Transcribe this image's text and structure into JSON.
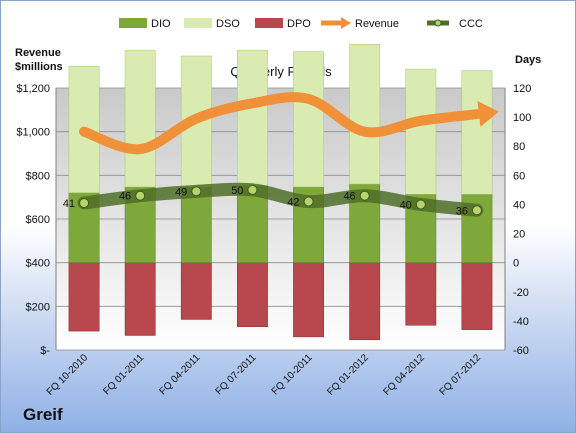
{
  "company": "Greif",
  "chart_data": {
    "type": "bar",
    "title": "Quarterly Periods",
    "categories": [
      "FQ 10-2010",
      "FQ 01-2011",
      "FQ 04-2011",
      "FQ 07-2011",
      "FQ 10-2011",
      "FQ 01-2012",
      "FQ 04-2012",
      "FQ 07-2012"
    ],
    "left_axis": {
      "label": "Revenue\n$millions",
      "ylim": [
        0,
        1200
      ],
      "ticks": [
        0,
        200,
        400,
        600,
        800,
        1000,
        1200
      ],
      "tick_labels": [
        "$-",
        "$200",
        "$400",
        "$600",
        "$800",
        "$1,000",
        "$1,200"
      ]
    },
    "right_axis": {
      "label": "Days",
      "ylim": [
        -60,
        120
      ],
      "ticks": [
        -60,
        -40,
        -20,
        0,
        20,
        40,
        60,
        80,
        100,
        120
      ],
      "tick_labels": [
        "-60",
        "-40",
        "-20",
        "0",
        "20",
        "40",
        "60",
        "80",
        "100",
        "120"
      ]
    },
    "series": [
      {
        "name": "DIO",
        "axis": "right",
        "type": "stacked-bar",
        "color": "#7fa83a",
        "values": [
          48,
          52,
          52,
          53,
          52,
          54,
          47,
          47
        ]
      },
      {
        "name": "DSO",
        "axis": "right",
        "type": "stacked-bar",
        "color": "#d9ebb0",
        "values": [
          87,
          94,
          90,
          93,
          93,
          96,
          86,
          85
        ]
      },
      {
        "name": "DPO",
        "axis": "right",
        "type": "bar-negative",
        "color": "#b8484e",
        "values": [
          -47,
          -50,
          -39,
          -44,
          -51,
          -53,
          -43,
          -46
        ]
      },
      {
        "name": "Revenue",
        "axis": "left",
        "type": "line",
        "color": "#f0913a",
        "values": [
          1000,
          920,
          1060,
          1130,
          1150,
          1000,
          1050,
          1080
        ]
      },
      {
        "name": "CCC",
        "axis": "right",
        "type": "line",
        "color": "#6b8e3a",
        "values": [
          41,
          46,
          49,
          50,
          42,
          46,
          40,
          36
        ]
      }
    ],
    "data_labels": [
      "41",
      "46",
      "49",
      "50",
      "42",
      "46",
      "40",
      "36"
    ],
    "legend": {
      "position": "top",
      "items": [
        "DIO",
        "DSO",
        "DPO",
        "Revenue",
        "CCC"
      ]
    },
    "grid": true
  }
}
